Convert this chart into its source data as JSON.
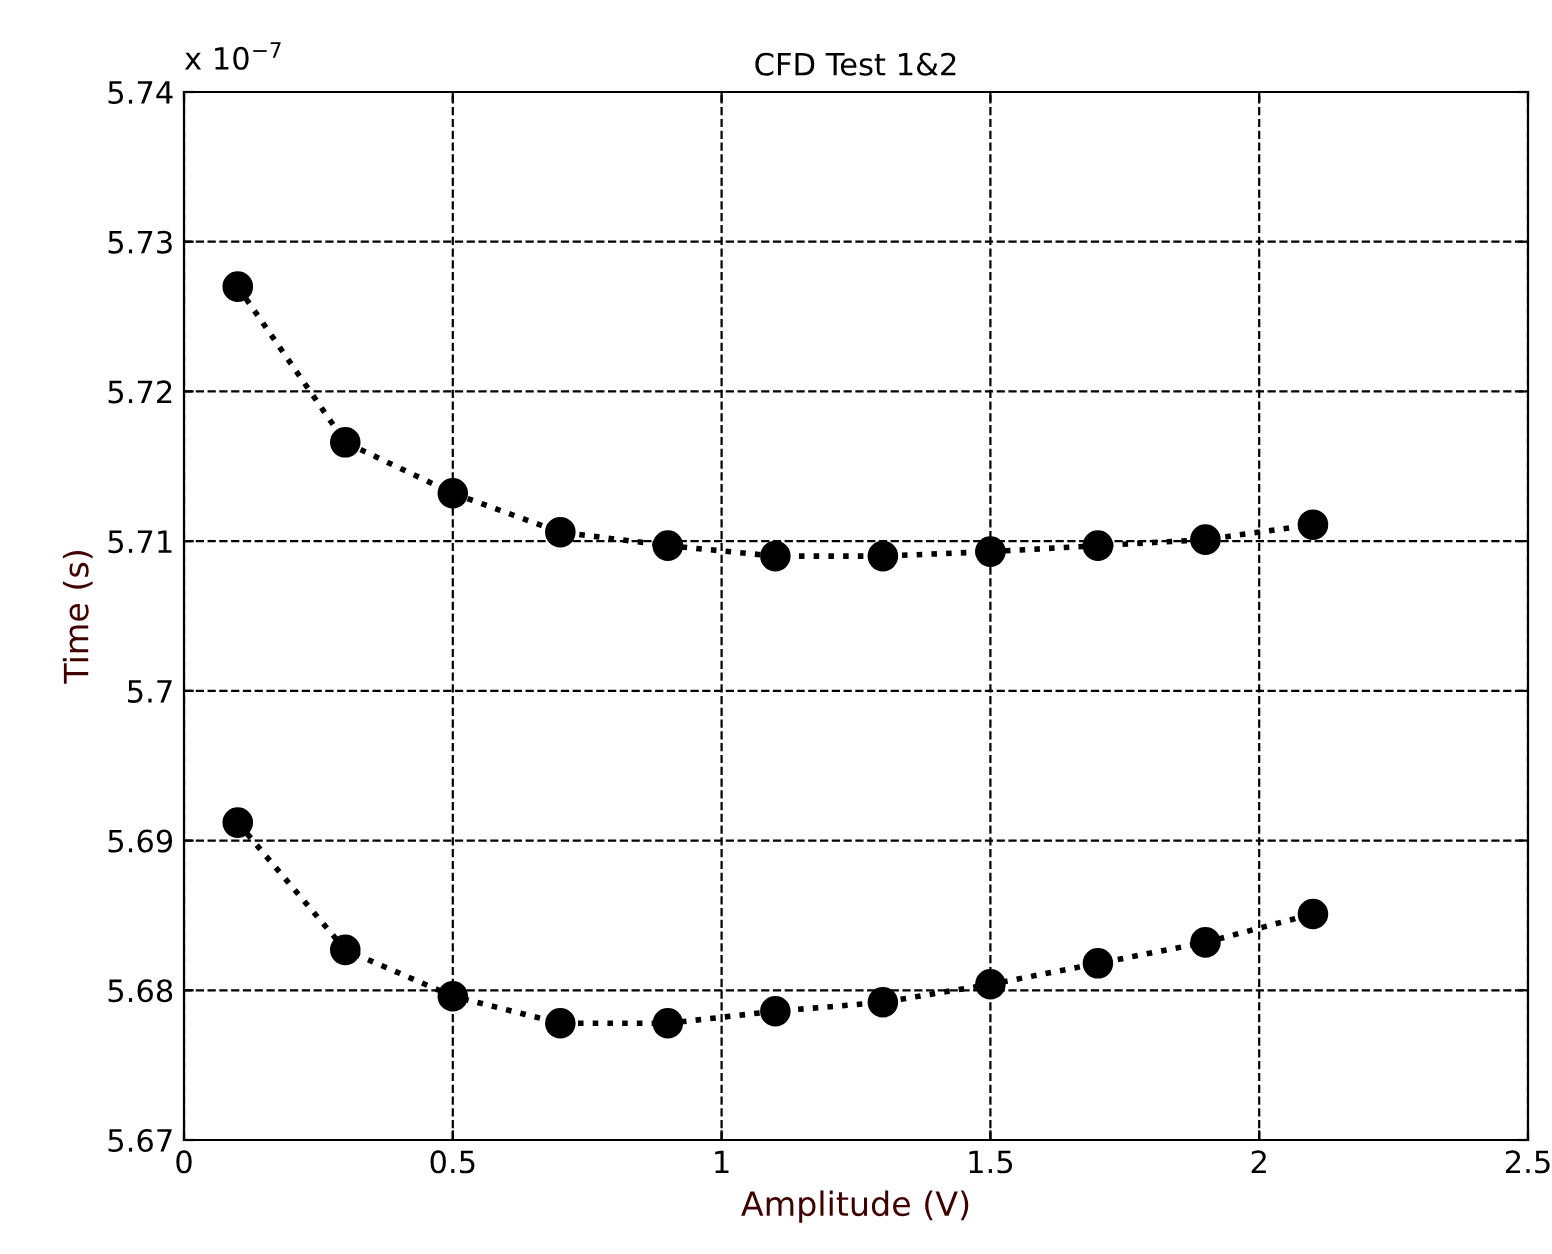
{
  "chart_data": {
    "type": "line",
    "title": "CFD Test 1&2",
    "xlabel": "Amplitude (V)",
    "ylabel": "Time (s)",
    "annotations": [
      "x 10$^{−7}$"
    ],
    "x": [
      0.1,
      0.3,
      0.5,
      0.7,
      0.9,
      1.1,
      1.3,
      1.5,
      1.7,
      1.9,
      2.1
    ],
    "series": [
      {
        "color": "#000000",
        "values": [
          5.727,
          5.7166,
          5.7132,
          5.7106,
          5.7097,
          5.709,
          5.709,
          5.7093,
          5.7097,
          5.7101,
          5.7111
        ]
      },
      {
        "color": "#000000",
        "values": [
          5.6912,
          5.6827,
          5.6796,
          5.6778,
          5.6778,
          5.6786,
          5.6792,
          5.6804,
          5.6818,
          5.6832,
          5.6851
        ]
      }
    ],
    "xlim": [
      0,
      2.5
    ],
    "xticks": [
      0,
      0.5,
      1,
      1.5,
      2,
      2.5
    ],
    "ylim": [
      5.67,
      5.74
    ],
    "yticks": [
      5.67,
      5.68,
      5.69,
      5.7,
      5.71,
      5.72,
      5.73,
      5.74
    ],
    "grid": true,
    "marker": "circle",
    "line_style": "dotted"
  }
}
